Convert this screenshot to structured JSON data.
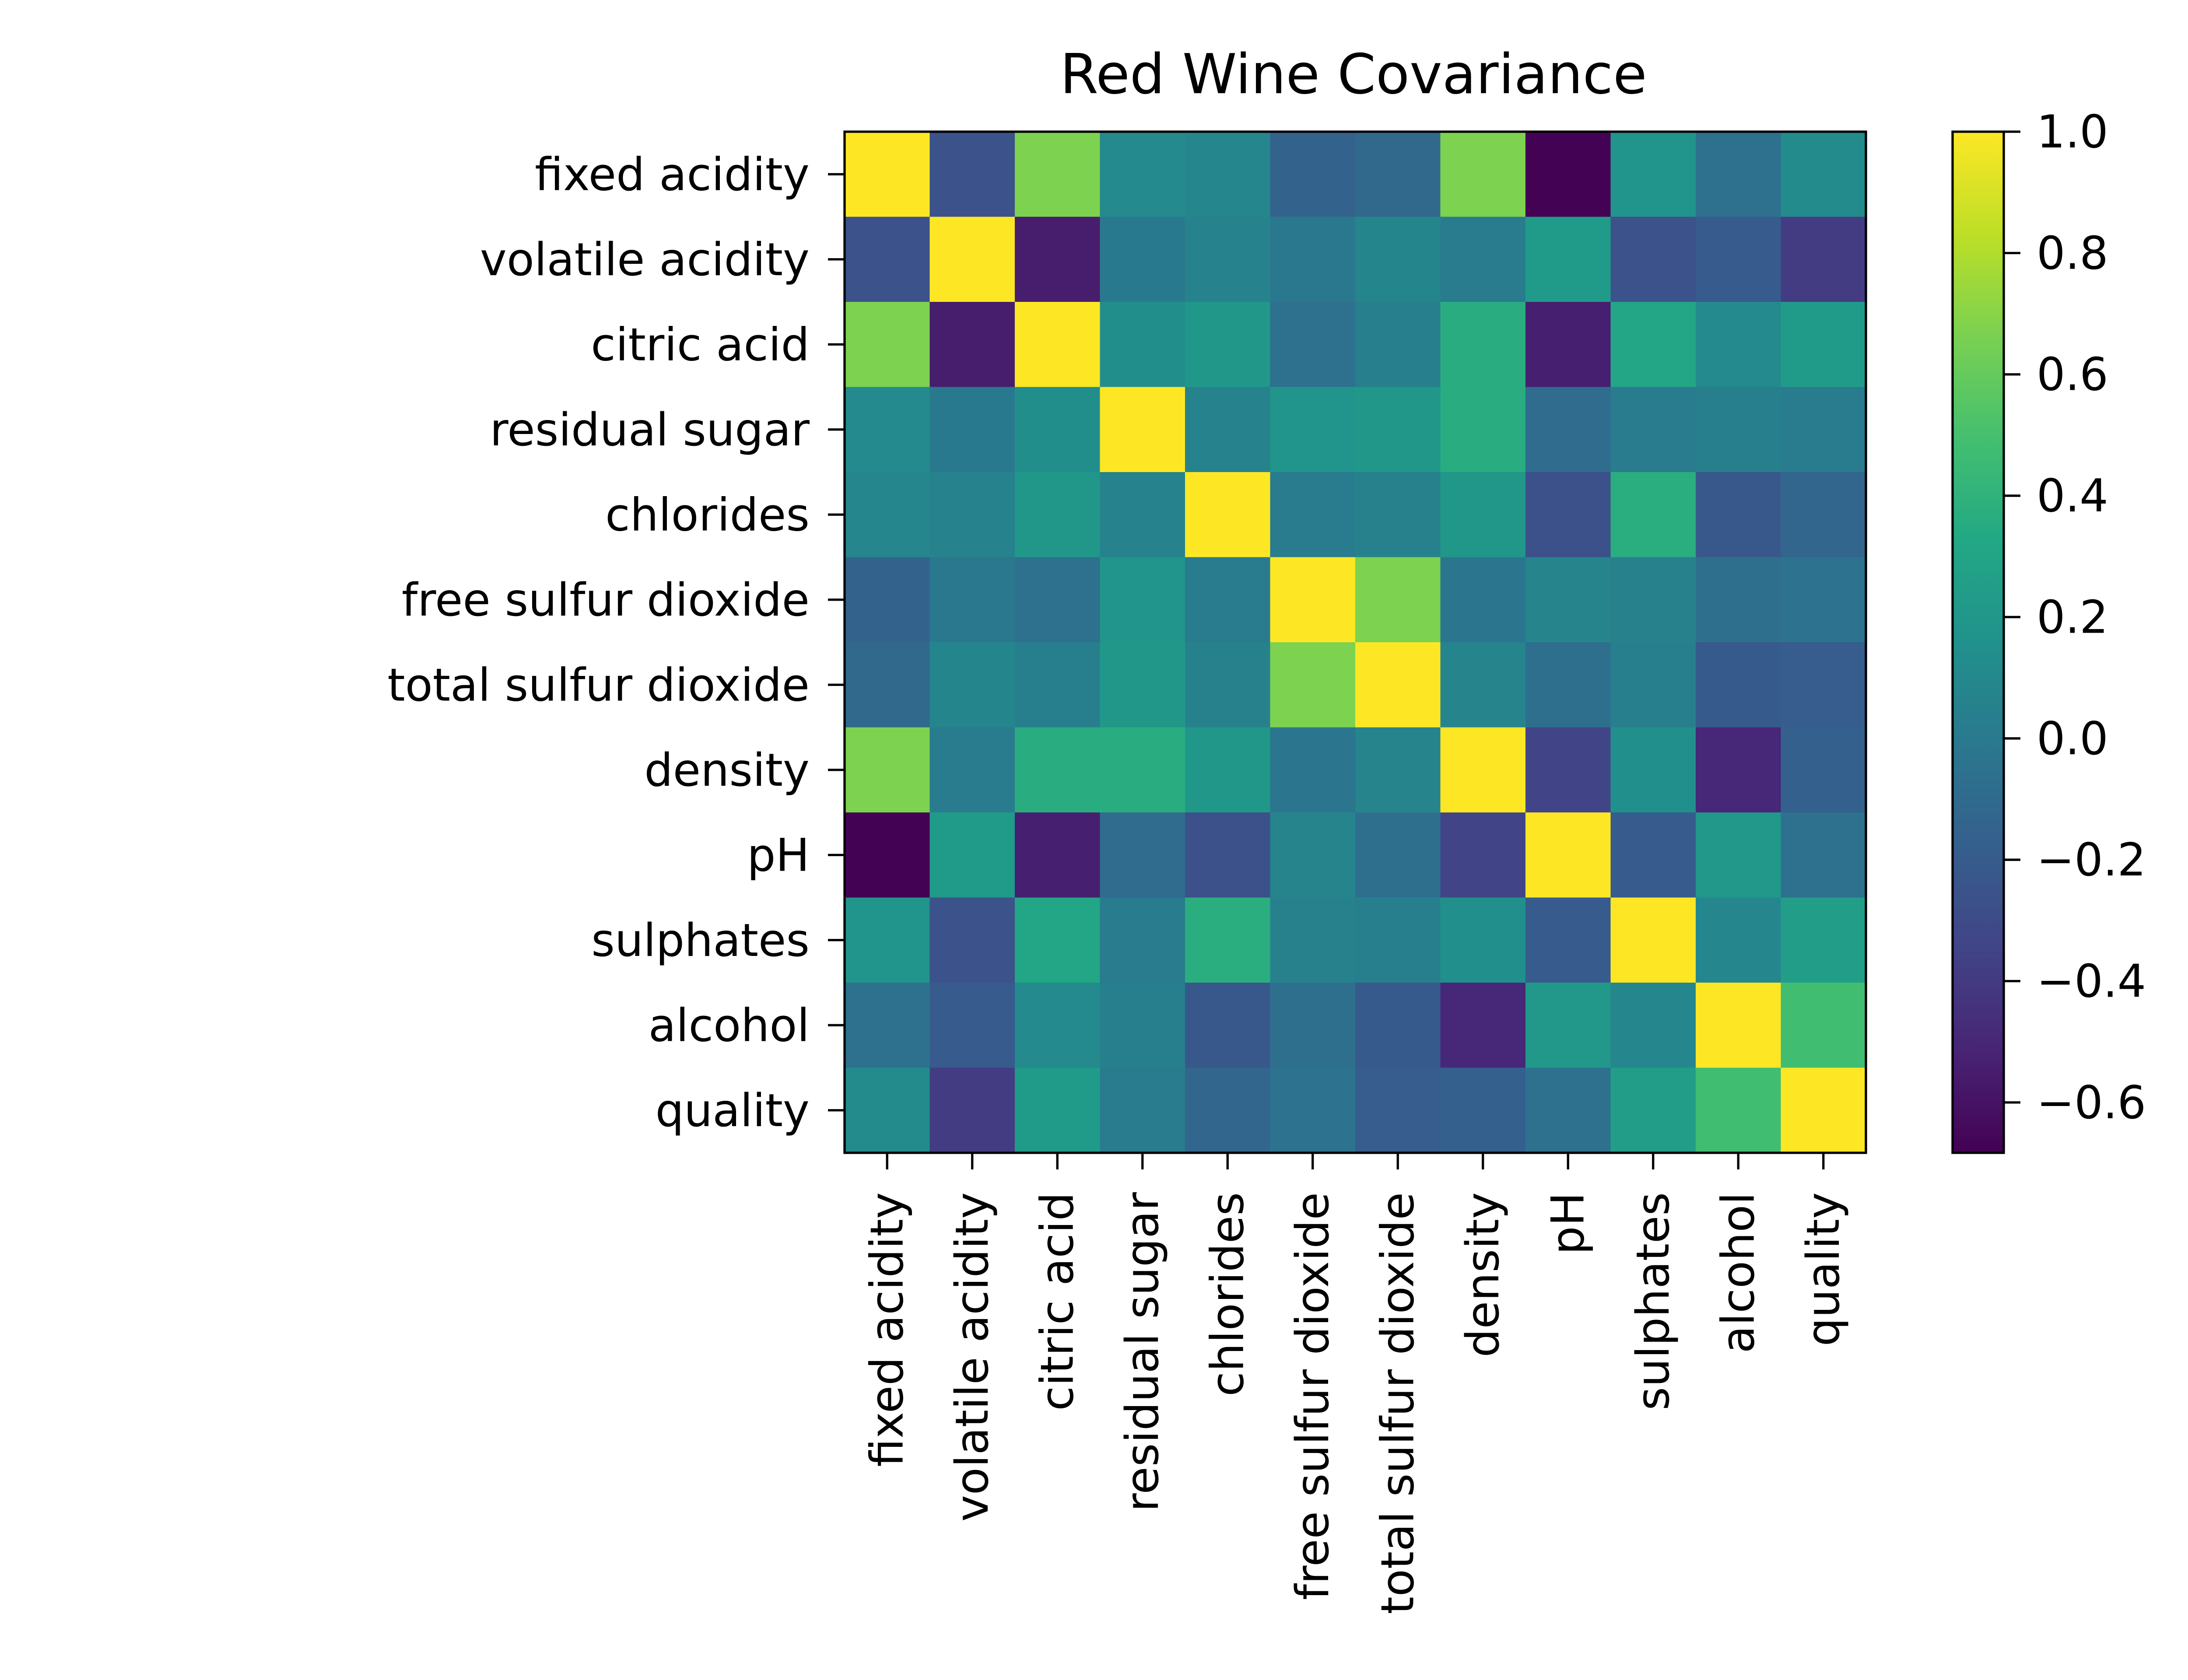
{
  "chart_data": {
    "type": "heatmap",
    "title": "Red Wine Covariance",
    "xlabel": "",
    "ylabel": "",
    "grid": false,
    "legend": "colorbar right",
    "colormap": "viridis",
    "categories": [
      "fixed acidity",
      "volatile acidity",
      "citric acid",
      "residual sugar",
      "chlorides",
      "free sulfur dioxide",
      "total sulfur dioxide",
      "density",
      "pH",
      "sulphates",
      "alcohol",
      "quality"
    ],
    "values": [
      [
        1.0,
        -0.26,
        0.67,
        0.11,
        0.09,
        -0.15,
        -0.11,
        0.67,
        -0.68,
        0.18,
        -0.06,
        0.12
      ],
      [
        -0.26,
        1.0,
        -0.55,
        0.0,
        0.06,
        -0.01,
        0.08,
        0.02,
        0.23,
        -0.26,
        -0.2,
        -0.39
      ],
      [
        0.67,
        -0.55,
        1.0,
        0.14,
        0.2,
        -0.06,
        0.04,
        0.36,
        -0.54,
        0.31,
        0.11,
        0.23
      ],
      [
        0.11,
        0.0,
        0.14,
        1.0,
        0.06,
        0.19,
        0.2,
        0.36,
        -0.09,
        0.01,
        0.04,
        0.01
      ],
      [
        0.09,
        0.06,
        0.2,
        0.06,
        1.0,
        0.01,
        0.05,
        0.2,
        -0.27,
        0.37,
        -0.22,
        -0.13
      ],
      [
        -0.15,
        -0.01,
        -0.06,
        0.19,
        0.01,
        1.0,
        0.67,
        -0.02,
        0.07,
        0.05,
        -0.07,
        -0.05
      ],
      [
        -0.11,
        0.08,
        0.04,
        0.2,
        0.05,
        0.67,
        1.0,
        0.07,
        -0.07,
        0.04,
        -0.21,
        -0.19
      ],
      [
        0.67,
        0.02,
        0.36,
        0.36,
        0.2,
        -0.02,
        0.07,
        1.0,
        -0.34,
        0.15,
        -0.5,
        -0.17
      ],
      [
        -0.68,
        0.23,
        -0.54,
        -0.09,
        -0.27,
        0.07,
        -0.07,
        -0.34,
        1.0,
        -0.2,
        0.21,
        -0.06
      ],
      [
        0.18,
        -0.26,
        0.31,
        0.01,
        0.37,
        0.05,
        0.04,
        0.15,
        -0.2,
        1.0,
        0.09,
        0.25
      ],
      [
        -0.06,
        -0.2,
        0.11,
        0.04,
        -0.22,
        -0.07,
        -0.21,
        -0.5,
        0.21,
        0.09,
        1.0,
        0.48
      ],
      [
        0.12,
        -0.39,
        0.23,
        0.01,
        -0.13,
        -0.05,
        -0.19,
        -0.17,
        -0.06,
        0.25,
        0.48,
        1.0
      ]
    ],
    "vmin": -0.683,
    "vmax": 1.0,
    "colorbar_ticks": [
      1.0,
      0.8,
      0.6,
      0.4,
      0.2,
      0.0,
      -0.2,
      -0.4,
      -0.6
    ],
    "colorbar_tick_labels": [
      "1.0",
      "0.8",
      "0.6",
      "0.4",
      "0.2",
      "0.0",
      "−0.2",
      "−0.4",
      "−0.6"
    ]
  }
}
